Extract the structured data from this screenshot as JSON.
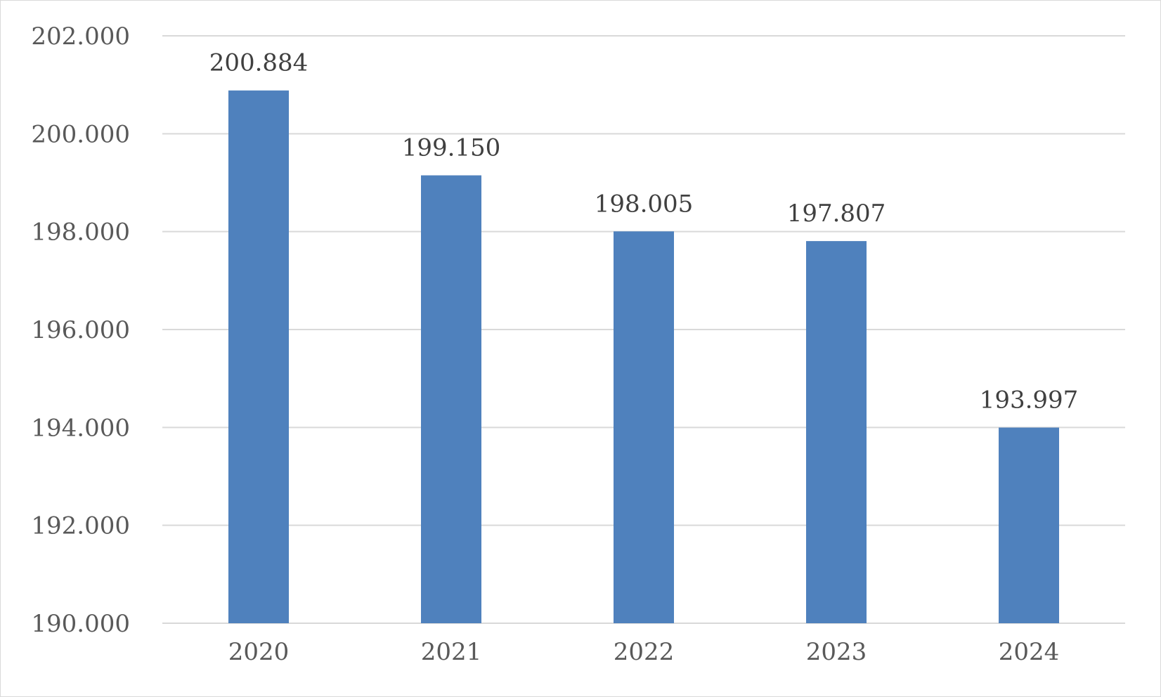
{
  "chart_data": {
    "type": "bar",
    "categories": [
      "2020",
      "2021",
      "2022",
      "2023",
      "2024"
    ],
    "values": [
      200884,
      199150,
      198005,
      197807,
      193997
    ],
    "data_labels": [
      "200.884",
      "199.150",
      "198.005",
      "197.807",
      "193.997"
    ],
    "title": "",
    "xlabel": "",
    "ylabel": "",
    "ylim": [
      190000,
      202000
    ],
    "yticks": [
      190000,
      192000,
      194000,
      196000,
      198000,
      200000,
      202000
    ],
    "ytick_labels": [
      "190.000",
      "192.000",
      "194.000",
      "196.000",
      "198.000",
      "200.000",
      "202.000"
    ],
    "grid": true,
    "legend": "none",
    "colors": {
      "bar": "#4f81bd",
      "grid": "#d9d9d9",
      "tick_text": "#595959",
      "label_text": "#404040"
    }
  }
}
